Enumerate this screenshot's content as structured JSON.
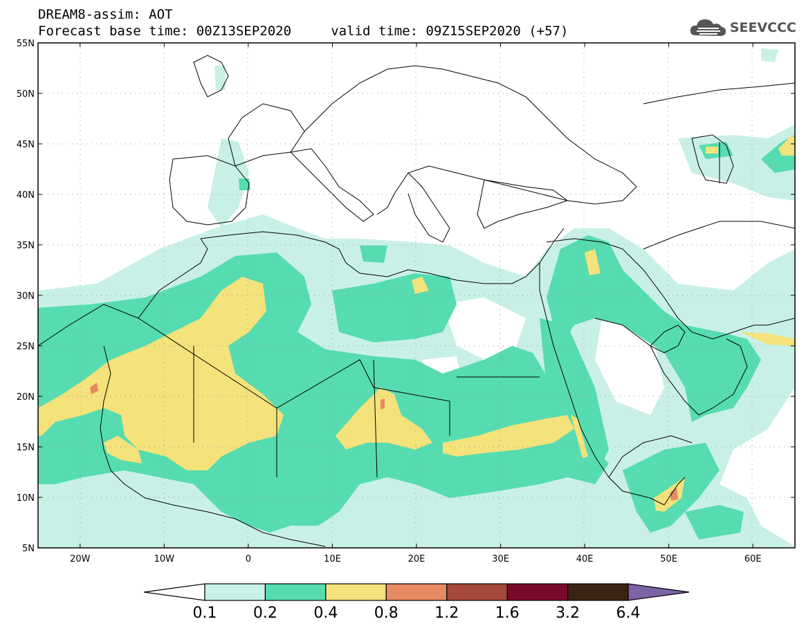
{
  "header": {
    "line1": "DREAM8-assim: AOT",
    "line2": "Forecast base time: 00Z13SEP2020     valid time: 09Z15SEP2020 (+57)",
    "logo_text": "SEEVCCC"
  },
  "map": {
    "lon_range": [
      -25,
      65
    ],
    "lat_range": [
      5,
      55
    ],
    "lat_labels": [
      "55N",
      "50N",
      "45N",
      "40N",
      "35N",
      "30N",
      "25N",
      "20N",
      "15N",
      "10N",
      "5N"
    ],
    "lat_values": [
      55,
      50,
      45,
      40,
      35,
      30,
      25,
      20,
      15,
      10,
      5
    ],
    "lon_labels": [
      "20W",
      "10W",
      "0",
      "10E",
      "20E",
      "30E",
      "40E",
      "50E",
      "60E"
    ],
    "lon_values": [
      -20,
      -10,
      0,
      10,
      20,
      30,
      40,
      50,
      60
    ]
  },
  "colorbar": {
    "colors": [
      "#ffffff",
      "#c9f0e6",
      "#56dcb0",
      "#f4e27a",
      "#e88a62",
      "#a5493a",
      "#7a0a2a",
      "#3b2414",
      "#7d62a5"
    ],
    "labels": [
      "0.1",
      "0.2",
      "0.4",
      "0.8",
      "1.2",
      "1.6",
      "3.2",
      "6.4"
    ]
  }
}
